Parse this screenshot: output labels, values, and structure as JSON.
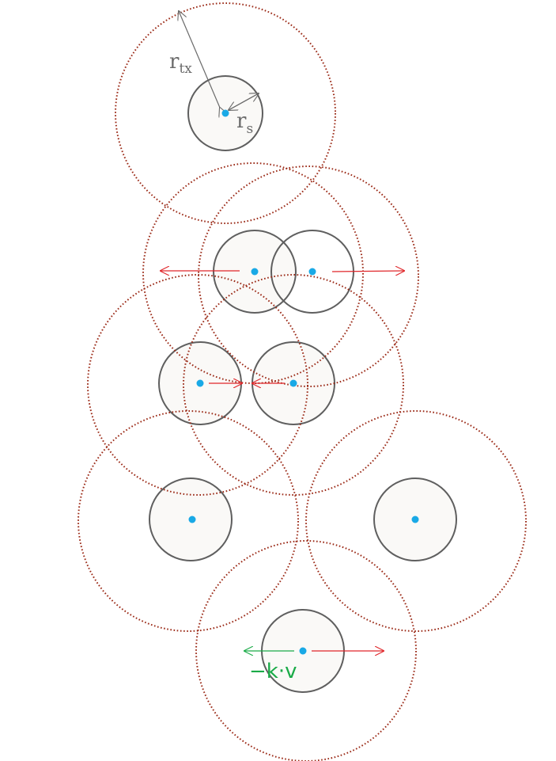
{
  "labels": {
    "transmit_radius_main": "r",
    "transmit_radius_sub": "tx",
    "sensor_radius_main": "r",
    "sensor_radius_sub": "s",
    "damping_term": "−k·v"
  },
  "colors": {
    "sensor_circle": "#5f5f5f",
    "sensor_fill": "#faf9f7",
    "range_circle": "#9b2a17",
    "node_dot": "#19a9e6",
    "force_arrow": "#e0262a",
    "damping_arrow": "#1aab48",
    "annotation": "#6b6b6b"
  }
}
